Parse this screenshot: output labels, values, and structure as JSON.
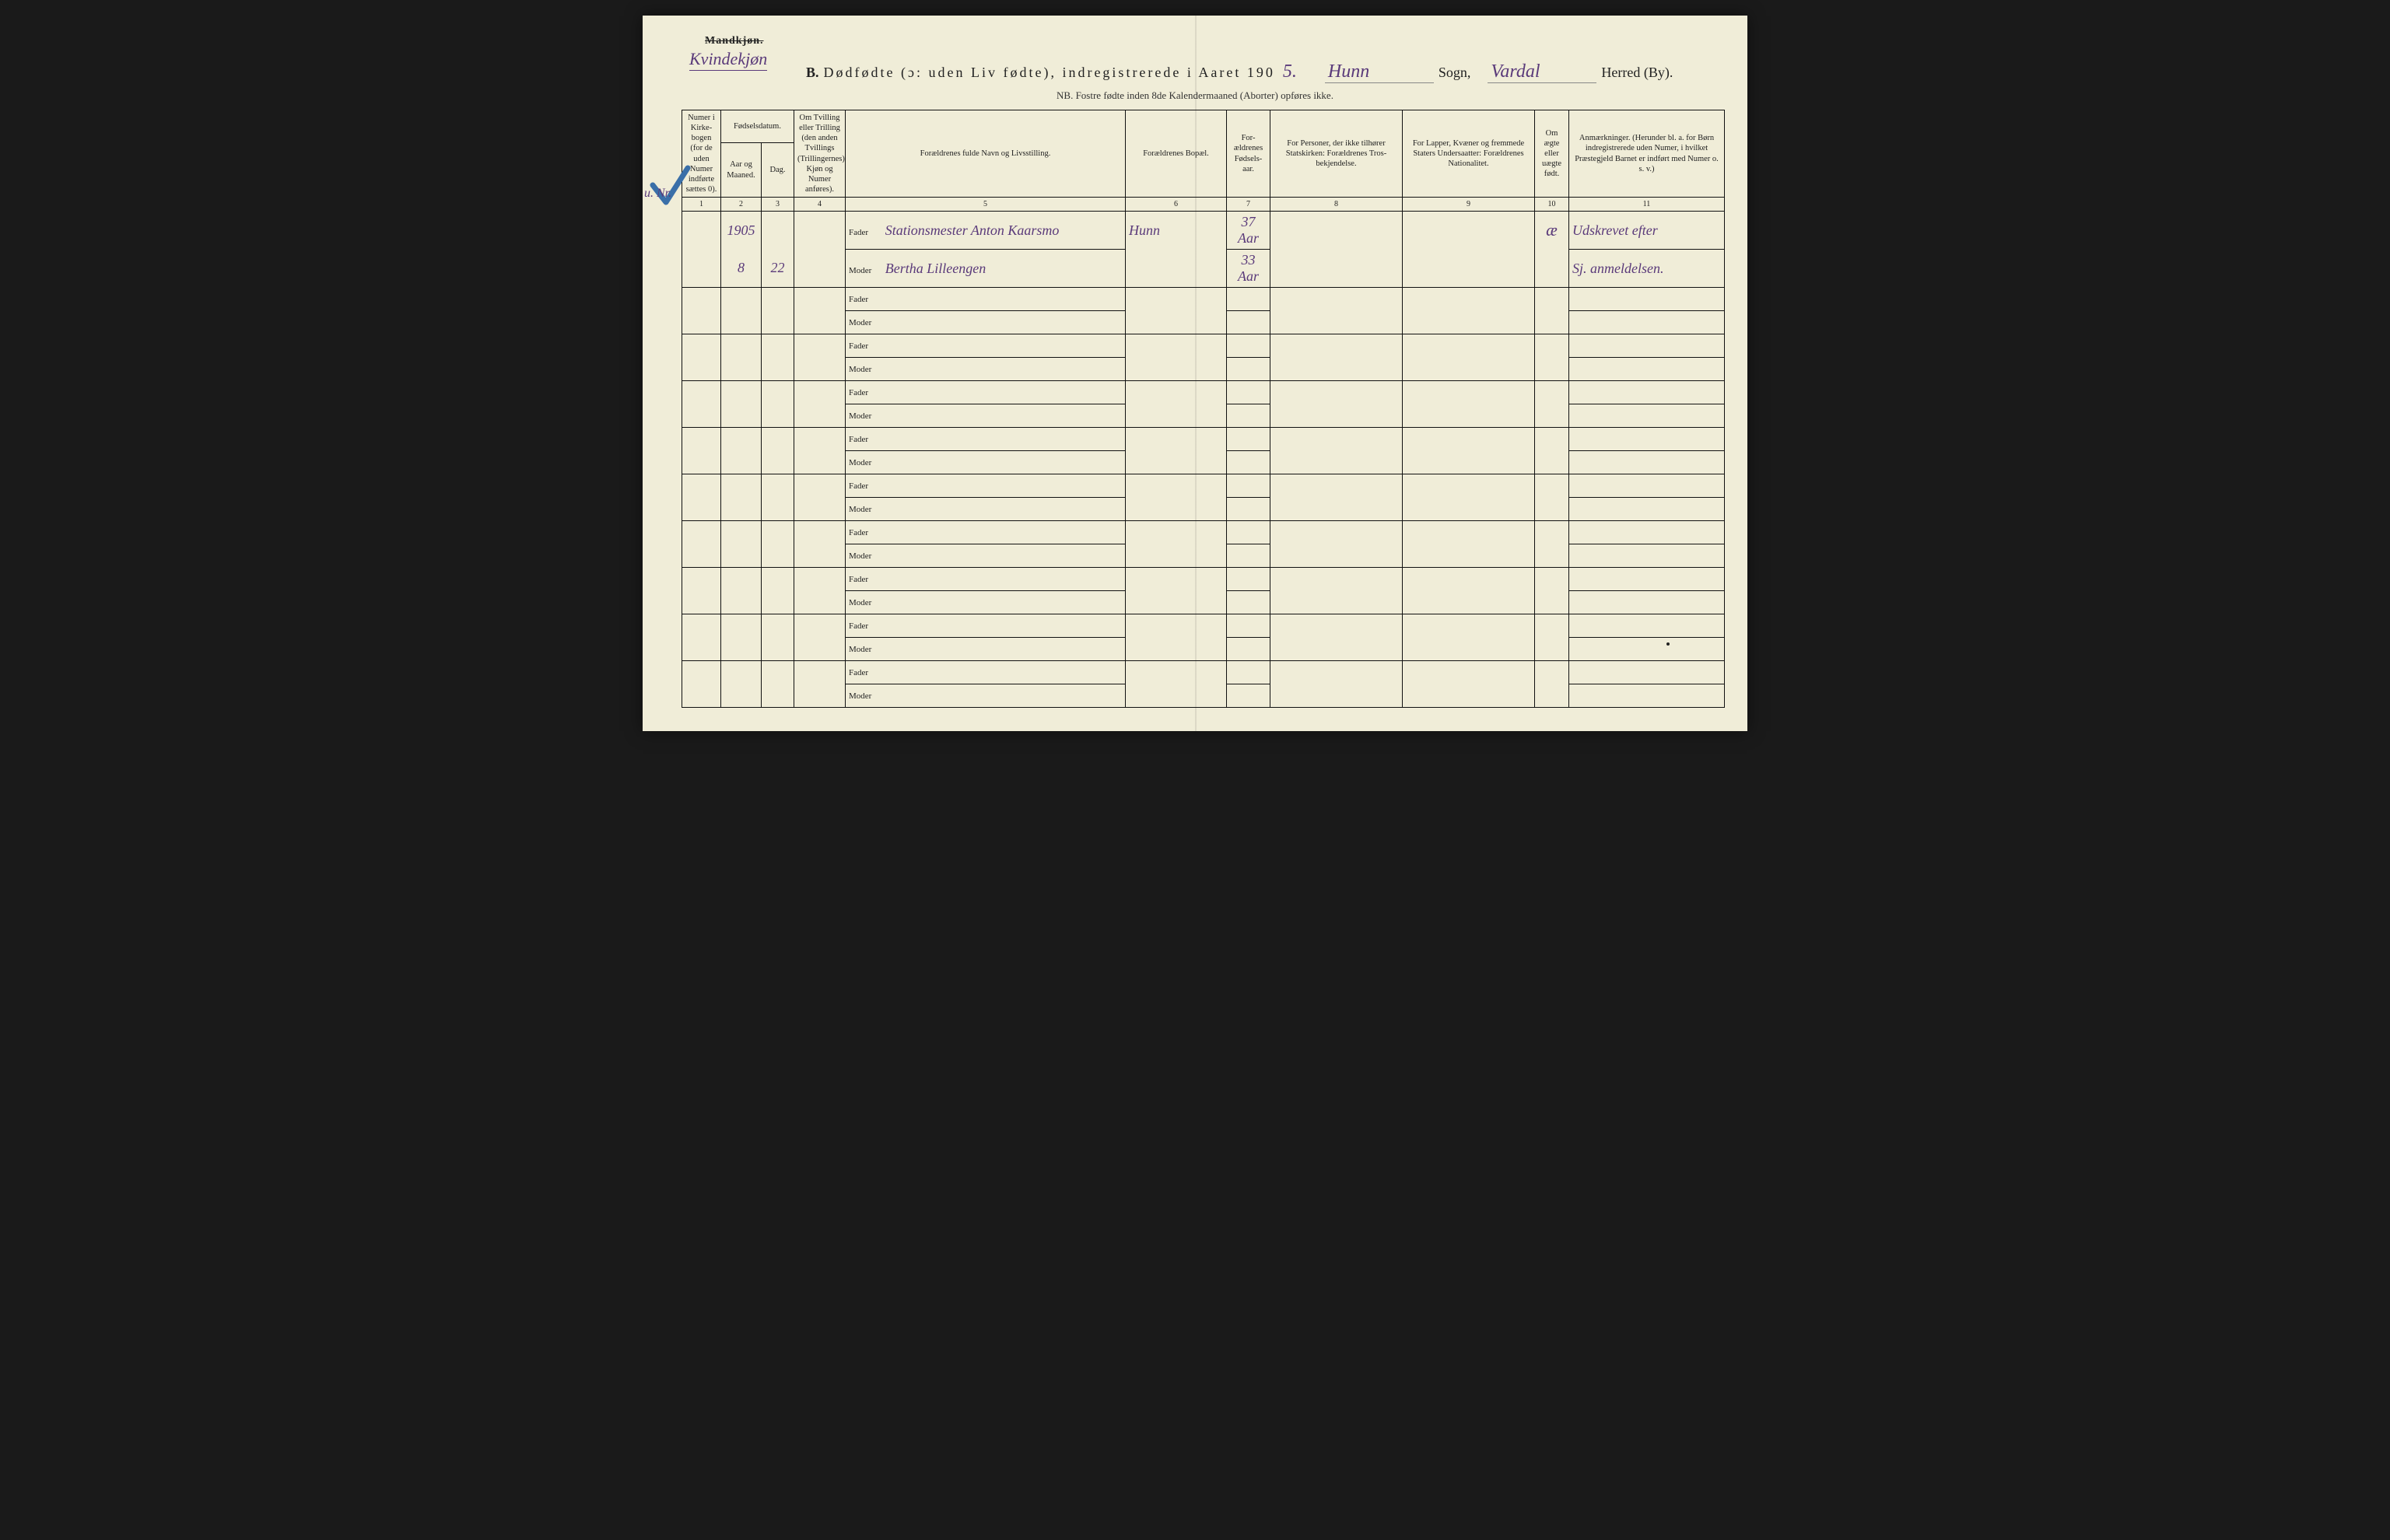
{
  "header": {
    "mandkjon": "Mandkjøn.",
    "kvindekjon": "Kvindekjøn",
    "title_prefix": "B.",
    "title_main": "Dødfødte (ɔ: uden Liv fødte), indregistrerede i Aaret 190",
    "year_suffix": "5.",
    "sogn_hw": "Hunn",
    "sogn_label": "Sogn,",
    "herred_hw": "Vardal",
    "herred_label": "Herred (By).",
    "subtitle": "NB.  Fostre fødte inden 8de Kalendermaaned (Aborter) opføres ikke."
  },
  "margin_hw": "u. Nr.",
  "columns": {
    "c1": "Numer i Kirke-bogen (for de uden Numer indførte sættes 0).",
    "c2_group": "Fødselsdatum.",
    "c2a": "Aar og Maaned.",
    "c2b": "Dag.",
    "c3": "Om Tvilling eller Trilling (den anden Tvillings (Trillingernes) Kjøn og Numer anføres).",
    "c4": "Forældrenes fulde Navn og Livsstilling.",
    "c5": "Forældrenes Bopæl.",
    "c6": "For-ældrenes Fødsels-aar.",
    "c7": "For Personer, der ikke tilhører Statskirken: Forældrenes Tros-bekjendelse.",
    "c8": "For Lapper, Kvæner og fremmede Staters Undersaatter: Forældrenes Nationalitet.",
    "c9": "Om ægte eller uægte født.",
    "c10": "Anmærkninger. (Herunder bl. a. for Børn indregistrerede uden Numer, i hvilket Præstegjeld Barnet er indført med Numer o. s. v.)"
  },
  "colnums": [
    "1",
    "2",
    "3",
    "4",
    "5",
    "6",
    "7",
    "8",
    "9",
    "10",
    "11"
  ],
  "labels": {
    "fader": "Fader",
    "moder": "Moder"
  },
  "entry": {
    "year_month": "1905",
    "month": "8",
    "day": "22",
    "fader": "Stationsmester Anton Kaarsmo",
    "moder": "Bertha Lilleengen",
    "bopael": "Hunn",
    "fader_aar": "37 Aar",
    "moder_aar": "33 Aar",
    "aegte": "æ",
    "anm1": "Udskrevet efter",
    "anm2": "Sj. anmeldelsen."
  },
  "widths": {
    "c1": 50,
    "c2a": 52,
    "c2b": 42,
    "c3": 66,
    "c4": 360,
    "c5": 130,
    "c6": 56,
    "c7": 170,
    "c8": 170,
    "c9": 44,
    "c10": 200
  },
  "colors": {
    "paper": "#f0edd8",
    "ink": "#111111",
    "handwriting": "#5a3a7a",
    "check": "#3a6fa8"
  }
}
